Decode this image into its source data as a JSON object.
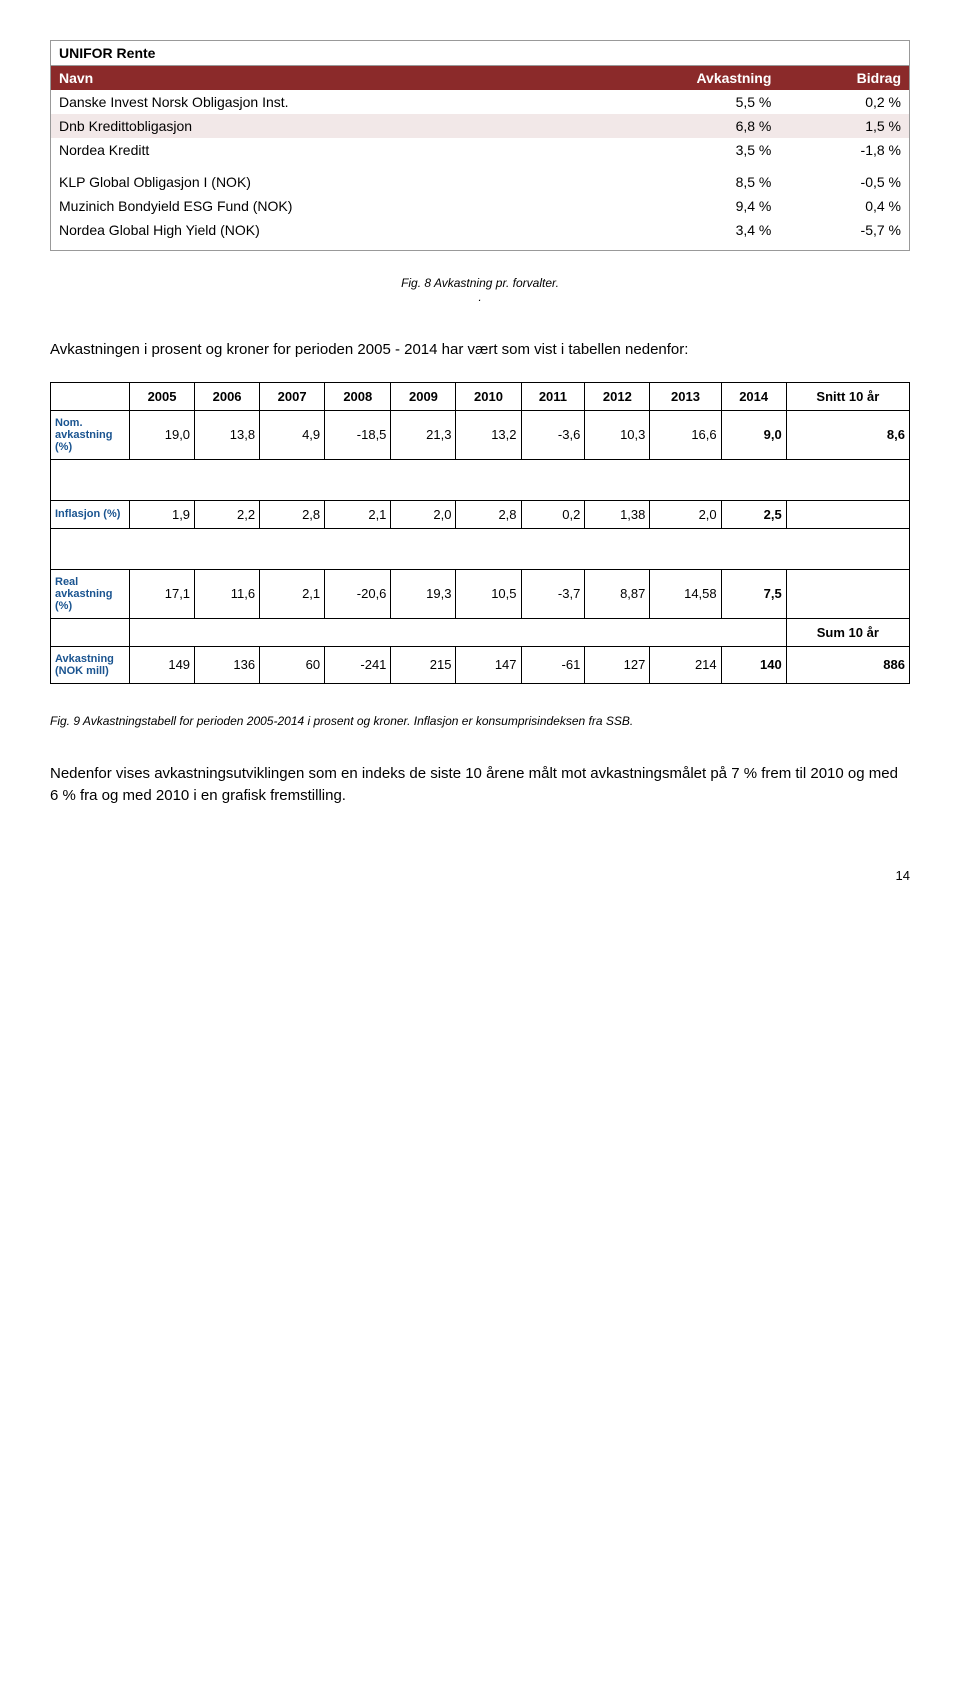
{
  "table1": {
    "title": "UNIFOR Rente",
    "headers": [
      "Navn",
      "Avkastning",
      "Bidrag"
    ],
    "rows": [
      {
        "name": "Danske Invest Norsk Obligasjon Inst.",
        "avk": "5,5 %",
        "bid": "0,2 %",
        "bg": "#ffffff"
      },
      {
        "name": "Dnb Kredittobligasjon",
        "avk": "6,8 %",
        "bid": "1,5 %",
        "bg": "#f2e8e8"
      },
      {
        "name": "Nordea Kreditt",
        "avk": "3,5 %",
        "bid": "-1,8 %",
        "bg": "#ffffff"
      },
      {
        "name": "",
        "avk": "",
        "bid": "",
        "bg": "#ffffff"
      },
      {
        "name": "KLP Global Obligasjon I (NOK)",
        "avk": "8,5 %",
        "bid": "-0,5 %",
        "bg": "#ffffff"
      },
      {
        "name": "Muzinich Bondyield ESG Fund (NOK)",
        "avk": "9,4 %",
        "bid": "0,4 %",
        "bg": "#ffffff"
      },
      {
        "name": "Nordea Global High Yield (NOK)",
        "avk": "3,4 %",
        "bid": "-5,7 %",
        "bg": "#ffffff"
      },
      {
        "name": "",
        "avk": "",
        "bid": "",
        "bg": "#ffffff"
      }
    ]
  },
  "caption1": "Fig. 8 Avkastning pr. forvalter.",
  "caption1b": ".",
  "intro_text": "Avkastningen i prosent og kroner for perioden 2005 - 2014 har vært som vist i tabellen nedenfor:",
  "table2": {
    "years": [
      "2005",
      "2006",
      "2007",
      "2008",
      "2009",
      "2010",
      "2011",
      "2012",
      "2013",
      "2014"
    ],
    "snitt_label": "Snitt 10 år",
    "sum_label": "Sum 10 år",
    "rows": {
      "nom": {
        "label": "Nom. avkastning (%)",
        "values": [
          "19,0",
          "13,8",
          "4,9",
          "-18,5",
          "21,3",
          "13,2",
          "-3,6",
          "10,3",
          "16,6"
        ],
        "bold": "9,0",
        "last": "8,6"
      },
      "inflasjon": {
        "label": "Inflasjon (%)",
        "values": [
          "1,9",
          "2,2",
          "2,8",
          "2,1",
          "2,0",
          "2,8",
          "0,2",
          "1,38",
          "2,0"
        ],
        "bold": "2,5",
        "last": ""
      },
      "real": {
        "label": "Real avkastning (%)",
        "values": [
          "17,1",
          "11,6",
          "2,1",
          "-20,6",
          "19,3",
          "10,5",
          "-3,7",
          "8,87",
          "14,58"
        ],
        "bold": "7,5",
        "last": ""
      },
      "avk_nok": {
        "label": "Avkastning (NOK mill)",
        "values": [
          "149",
          "136",
          "60",
          "-241",
          "215",
          "147",
          "-61",
          "127",
          "214"
        ],
        "bold": "140",
        "last": "886"
      }
    }
  },
  "caption2": "Fig. 9 Avkastningstabell for perioden 2005-2014 i prosent og kroner. Inflasjon er konsumprisindeksen fra SSB.",
  "bottom_text": "Nedenfor vises avkastningsutviklingen som en indeks de siste 10 årene målt mot avkastningsmålet på 7 % frem til 2010 og med 6 % fra og med 2010 i en grafisk fremstilling.",
  "page_number": "14"
}
